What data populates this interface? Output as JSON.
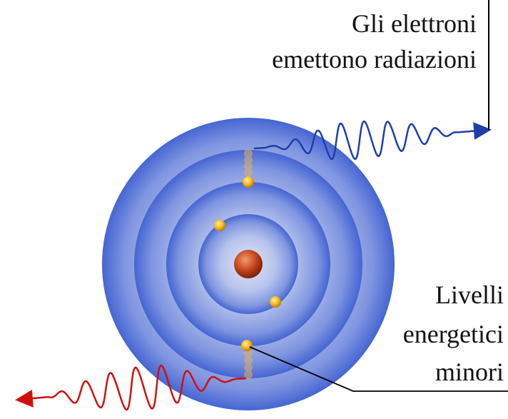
{
  "labels": {
    "top": [
      "Gli elettroni",
      "emettono radiazioni"
    ],
    "bottom": [
      "Livelli",
      "energetici",
      "minori"
    ]
  }
}
